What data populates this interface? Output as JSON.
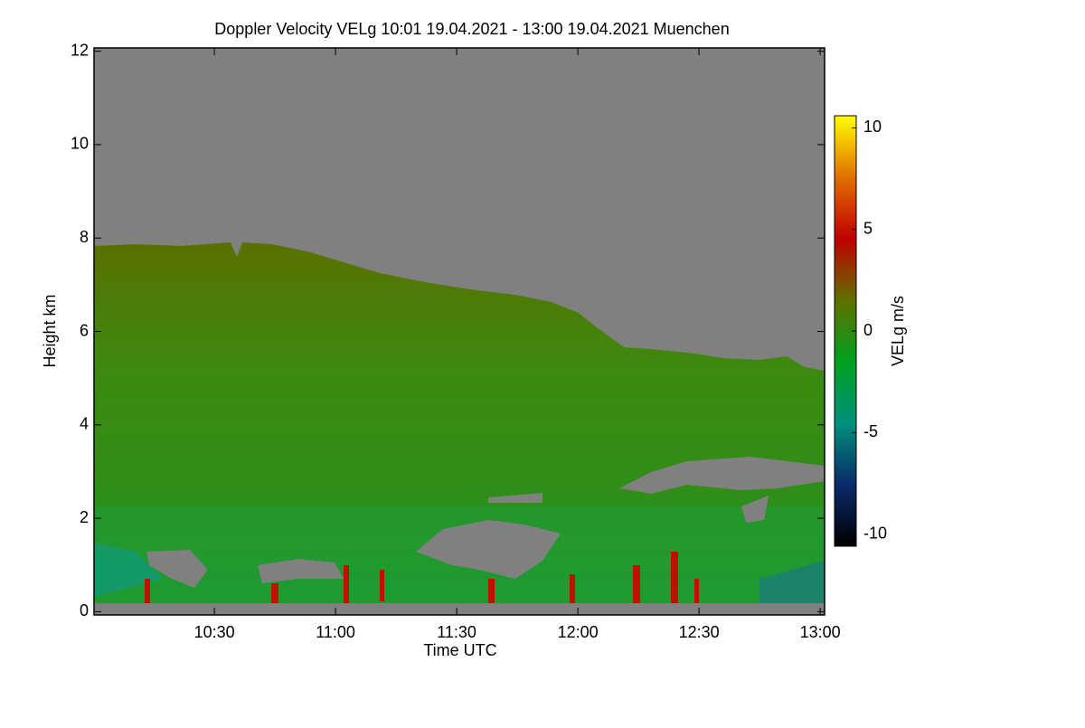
{
  "chart_data": {
    "type": "heatmap",
    "title": "Doppler Velocity VELg   10:01 19.04.2021 - 13:00 19.04.2021 Muenchen",
    "x_label": "Time UTC",
    "y_label": "Height km",
    "xlim": [
      600.2,
      781.1
    ],
    "xticks": [
      {
        "value": 630,
        "label": "10:30"
      },
      {
        "value": 660,
        "label": "11:00"
      },
      {
        "value": 690,
        "label": "11:30"
      },
      {
        "value": 720,
        "label": "12:00"
      },
      {
        "value": 750,
        "label": "12:30"
      },
      {
        "value": 780,
        "label": "13:00"
      }
    ],
    "ylim": [
      -0.07,
      12.07
    ],
    "yticks": [
      0,
      2,
      4,
      6,
      8,
      10,
      12
    ],
    "colorbar": {
      "label": "VELg m/s",
      "lim": [
        -10.6,
        10.6
      ],
      "ticks": [
        -10,
        -5,
        0,
        5,
        10
      ],
      "colors": [
        "#000000",
        "#0a2a6a",
        "#00907a",
        "#00a020",
        "#607000",
        "#c00000",
        "#e07000",
        "#ffff00"
      ]
    }
  }
}
